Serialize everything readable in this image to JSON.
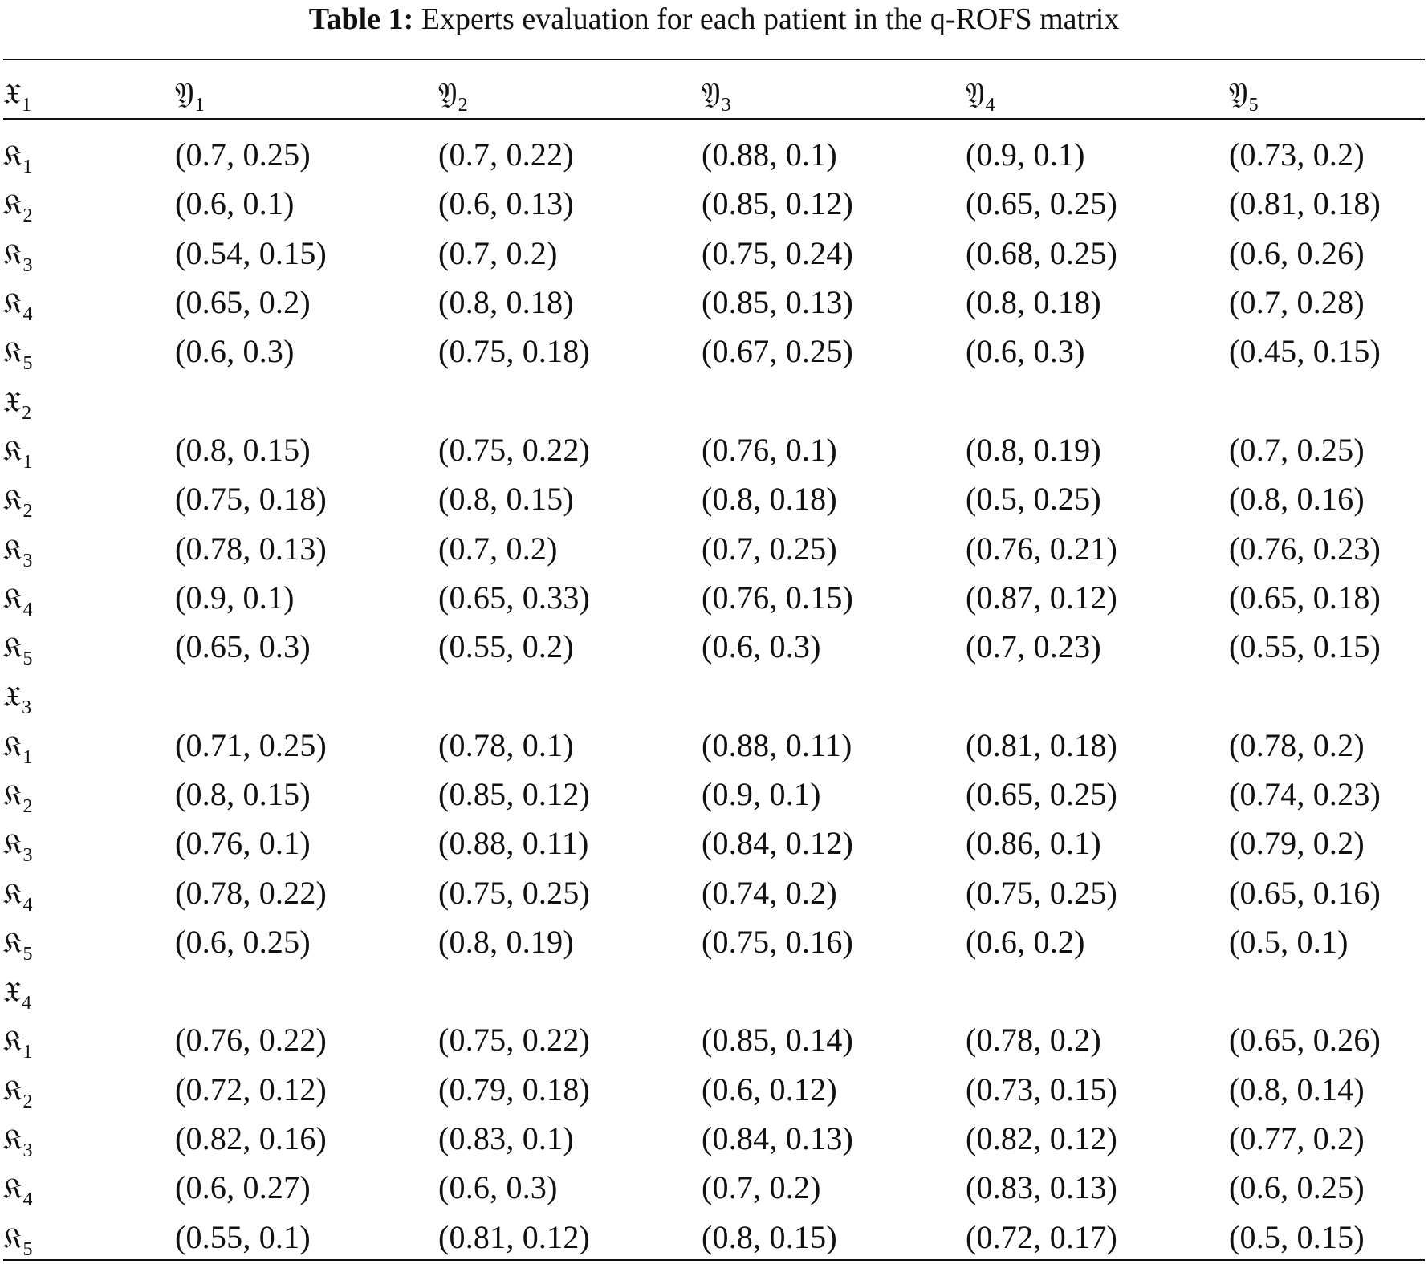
{
  "caption": {
    "label": "Table 1:",
    "text": "Experts evaluation for each patient in the q-ROFS matrix"
  },
  "symbols": {
    "expert": "𝔛",
    "row": "𝔎",
    "col": "𝔜"
  },
  "header": {
    "first": {
      "sym": "𝔛",
      "sub": "1"
    },
    "columns": [
      {
        "sym": "𝔜",
        "sub": "1"
      },
      {
        "sym": "𝔜",
        "sub": "2"
      },
      {
        "sym": "𝔜",
        "sub": "3"
      },
      {
        "sym": "𝔜",
        "sub": "4"
      },
      {
        "sym": "𝔜",
        "sub": "5"
      }
    ]
  },
  "groups": [
    {
      "label": null,
      "rows": [
        {
          "sub": "1",
          "values": [
            "(0.7, 0.25)",
            "(0.7, 0.22)",
            "(0.88, 0.1)",
            "(0.9, 0.1)",
            "(0.73, 0.2)"
          ]
        },
        {
          "sub": "2",
          "values": [
            "(0.6, 0.1)",
            "(0.6, 0.13)",
            "(0.85, 0.12)",
            "(0.65, 0.25)",
            "(0.81, 0.18)"
          ]
        },
        {
          "sub": "3",
          "values": [
            "(0.54, 0.15)",
            "(0.7, 0.2)",
            "(0.75, 0.24)",
            "(0.68, 0.25)",
            "(0.6, 0.26)"
          ]
        },
        {
          "sub": "4",
          "values": [
            "(0.65, 0.2)",
            "(0.8, 0.18)",
            "(0.85, 0.13)",
            "(0.8, 0.18)",
            "(0.7, 0.28)"
          ]
        },
        {
          "sub": "5",
          "values": [
            "(0.6, 0.3)",
            "(0.75, 0.18)",
            "(0.67, 0.25)",
            "(0.6, 0.3)",
            "(0.45, 0.15)"
          ]
        }
      ]
    },
    {
      "label": {
        "sym": "𝔛",
        "sub": "2"
      },
      "rows": [
        {
          "sub": "1",
          "values": [
            "(0.8, 0.15)",
            "(0.75, 0.22)",
            "(0.76, 0.1)",
            "(0.8, 0.19)",
            "(0.7, 0.25)"
          ]
        },
        {
          "sub": "2",
          "values": [
            "(0.75, 0.18)",
            "(0.8, 0.15)",
            "(0.8, 0.18)",
            "(0.5, 0.25)",
            "(0.8, 0.16)"
          ]
        },
        {
          "sub": "3",
          "values": [
            "(0.78, 0.13)",
            "(0.7, 0.2)",
            "(0.7, 0.25)",
            "(0.76, 0.21)",
            "(0.76, 0.23)"
          ]
        },
        {
          "sub": "4",
          "values": [
            "(0.9, 0.1)",
            "(0.65, 0.33)",
            "(0.76, 0.15)",
            "(0.87, 0.12)",
            "(0.65, 0.18)"
          ]
        },
        {
          "sub": "5",
          "values": [
            "(0.65, 0.3)",
            "(0.55, 0.2)",
            "(0.6, 0.3)",
            "(0.7, 0.23)",
            "(0.55, 0.15)"
          ]
        }
      ]
    },
    {
      "label": {
        "sym": "𝔛",
        "sub": "3"
      },
      "rows": [
        {
          "sub": "1",
          "values": [
            "(0.71, 0.25)",
            "(0.78, 0.1)",
            "(0.88, 0.11)",
            "(0.81, 0.18)",
            "(0.78, 0.2)"
          ]
        },
        {
          "sub": "2",
          "values": [
            "(0.8, 0.15)",
            "(0.85, 0.12)",
            "(0.9, 0.1)",
            "(0.65, 0.25)",
            "(0.74, 0.23)"
          ]
        },
        {
          "sub": "3",
          "values": [
            "(0.76, 0.1)",
            "(0.88, 0.11)",
            "(0.84, 0.12)",
            "(0.86, 0.1)",
            "(0.79, 0.2)"
          ]
        },
        {
          "sub": "4",
          "values": [
            "(0.78, 0.22)",
            "(0.75, 0.25)",
            "(0.74, 0.2)",
            "(0.75, 0.25)",
            "(0.65, 0.16)"
          ]
        },
        {
          "sub": "5",
          "values": [
            "(0.6, 0.25)",
            "(0.8, 0.19)",
            "(0.75, 0.16)",
            "(0.6, 0.2)",
            "(0.5, 0.1)"
          ]
        }
      ]
    },
    {
      "label": {
        "sym": "𝔛",
        "sub": "4"
      },
      "rows": [
        {
          "sub": "1",
          "values": [
            "(0.76, 0.22)",
            "(0.75, 0.22)",
            "(0.85, 0.14)",
            "(0.78, 0.2)",
            "(0.65, 0.26)"
          ]
        },
        {
          "sub": "2",
          "values": [
            "(0.72, 0.12)",
            "(0.79, 0.18)",
            "(0.6, 0.12)",
            "(0.73, 0.15)",
            "(0.8, 0.14)"
          ]
        },
        {
          "sub": "3",
          "values": [
            "(0.82, 0.16)",
            "(0.83, 0.1)",
            "(0.84, 0.13)",
            "(0.82, 0.12)",
            "(0.77, 0.2)"
          ]
        },
        {
          "sub": "4",
          "values": [
            "(0.6, 0.27)",
            "(0.6, 0.3)",
            "(0.7, 0.2)",
            "(0.83, 0.13)",
            "(0.6, 0.25)"
          ]
        },
        {
          "sub": "5",
          "values": [
            "(0.55, 0.1)",
            "(0.81, 0.12)",
            "(0.8, 0.15)",
            "(0.72, 0.17)",
            "(0.5, 0.15)"
          ]
        }
      ]
    }
  ]
}
